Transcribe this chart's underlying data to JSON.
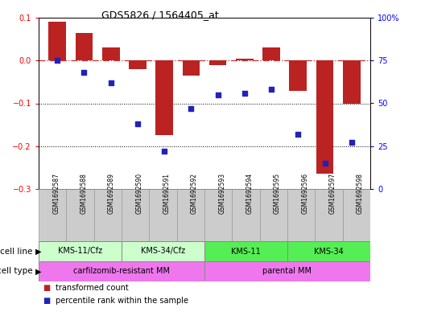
{
  "title": "GDS5826 / 1564405_at",
  "samples": [
    "GSM1692587",
    "GSM1692588",
    "GSM1692589",
    "GSM1692590",
    "GSM1692591",
    "GSM1692592",
    "GSM1692593",
    "GSM1692594",
    "GSM1692595",
    "GSM1692596",
    "GSM1692597",
    "GSM1692598"
  ],
  "bar_values": [
    0.09,
    0.065,
    0.03,
    -0.02,
    -0.175,
    -0.035,
    -0.01,
    0.005,
    0.03,
    -0.07,
    -0.265,
    -0.1
  ],
  "percentile_values": [
    75,
    68,
    62,
    38,
    22,
    47,
    55,
    56,
    58,
    32,
    15,
    27
  ],
  "bar_color": "#bb2222",
  "dot_color": "#2222bb",
  "ylim_left": [
    -0.3,
    0.1
  ],
  "ylim_right": [
    0,
    100
  ],
  "yticks_left": [
    -0.3,
    -0.2,
    -0.1,
    0.0,
    0.1
  ],
  "yticks_right": [
    0,
    25,
    50,
    75,
    100
  ],
  "ytick_labels_right": [
    "0",
    "25",
    "50",
    "75",
    "100%"
  ],
  "dotted_lines": [
    -0.1,
    -0.2
  ],
  "cell_line_groups": [
    {
      "label": "KMS-11/Cfz",
      "start": 0,
      "end": 3,
      "color": "#ccffcc"
    },
    {
      "label": "KMS-34/Cfz",
      "start": 3,
      "end": 6,
      "color": "#ccffcc"
    },
    {
      "label": "KMS-11",
      "start": 6,
      "end": 9,
      "color": "#55ee55"
    },
    {
      "label": "KMS-34",
      "start": 9,
      "end": 12,
      "color": "#55ee55"
    }
  ],
  "cell_type_groups": [
    {
      "label": "carfilzomib-resistant MM",
      "start": 0,
      "end": 6,
      "color": "#ee77ee"
    },
    {
      "label": "parental MM",
      "start": 6,
      "end": 12,
      "color": "#ee77ee"
    }
  ],
  "cell_line_label": "cell line",
  "cell_type_label": "cell type",
  "legend_items": [
    {
      "label": "transformed count",
      "color": "#bb2222"
    },
    {
      "label": "percentile rank within the sample",
      "color": "#2222bb"
    }
  ],
  "bg_color": "#ffffff",
  "dash_line_color": "#cc3333",
  "sample_box_color": "#cccccc",
  "sample_box_edge": "#999999"
}
